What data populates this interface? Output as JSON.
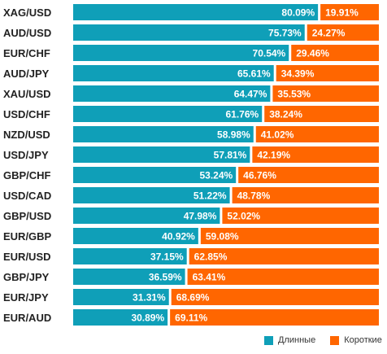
{
  "chart_data": {
    "type": "bar",
    "stacked": true,
    "orientation": "horizontal",
    "categories": [
      "XAG/USD",
      "AUD/USD",
      "EUR/CHF",
      "AUD/JPY",
      "XAU/USD",
      "USD/CHF",
      "NZD/USD",
      "USD/JPY",
      "GBP/CHF",
      "USD/CAD",
      "GBP/USD",
      "EUR/GBP",
      "EUR/USD",
      "GBP/JPY",
      "EUR/JPY",
      "EUR/AUD"
    ],
    "series": [
      {
        "name": "Длинные",
        "color": "#0f9fb8",
        "values": [
          80.09,
          75.73,
          70.54,
          65.61,
          64.47,
          61.76,
          58.98,
          57.81,
          53.24,
          51.22,
          47.98,
          40.92,
          37.15,
          36.59,
          31.31,
          30.89
        ],
        "labels": [
          "80.09%",
          "75.73%",
          "70.54%",
          "65.61%",
          "64.47%",
          "61.76%",
          "58.98%",
          "57.81%",
          "53.24%",
          "51.22%",
          "47.98%",
          "40.92%",
          "37.15%",
          "36.59%",
          "31.31%",
          "30.89%"
        ]
      },
      {
        "name": "Короткие",
        "color": "#ff6600",
        "values": [
          19.91,
          24.27,
          29.46,
          34.39,
          35.53,
          38.24,
          41.02,
          42.19,
          46.76,
          48.78,
          52.02,
          59.08,
          62.85,
          63.41,
          68.69,
          69.11
        ],
        "labels": [
          "19.91%",
          "24.27%",
          "29.46%",
          "34.39%",
          "35.53%",
          "38.24%",
          "41.02%",
          "42.19%",
          "46.76%",
          "48.78%",
          "52.02%",
          "59.08%",
          "62.85%",
          "63.41%",
          "68.69%",
          "69.11%"
        ]
      }
    ],
    "xlim": [
      0,
      100
    ],
    "legend": "bottom-right",
    "grid": false
  }
}
